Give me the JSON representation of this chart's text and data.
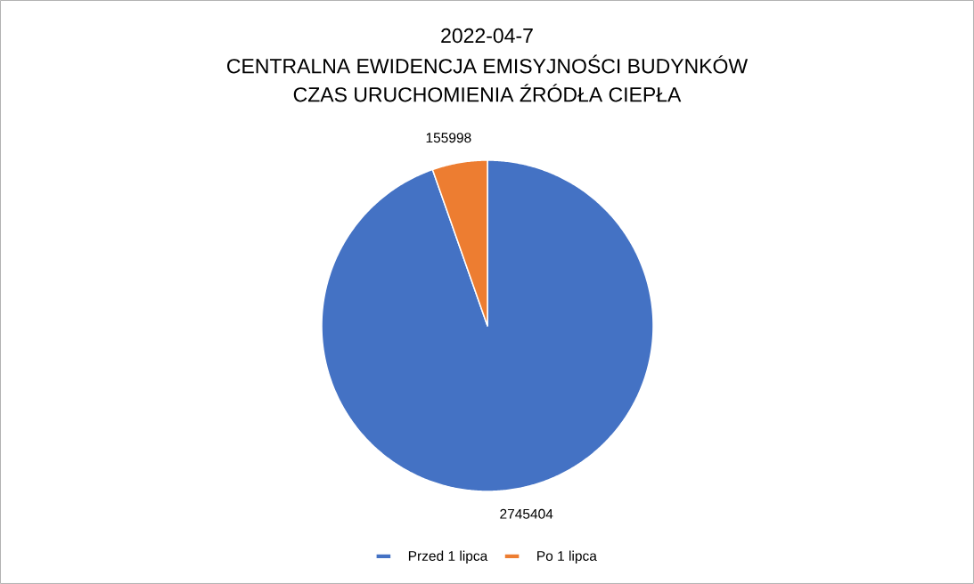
{
  "chart_data": {
    "type": "pie",
    "title": "2022-04-7",
    "subtitle": "CENTRALNA EWIDENCJA EMISYJNOŚCI BUDYNKÓW CZAS URUCHOMIENIA ŹRÓDŁA CIEPŁA",
    "categories": [
      "Przed 1 lipca",
      "Po 1 lipca"
    ],
    "values": [
      2745404,
      155998
    ],
    "colors": [
      "#4472c4",
      "#ed7d31"
    ],
    "data_labels": true,
    "legend": "bottom"
  }
}
